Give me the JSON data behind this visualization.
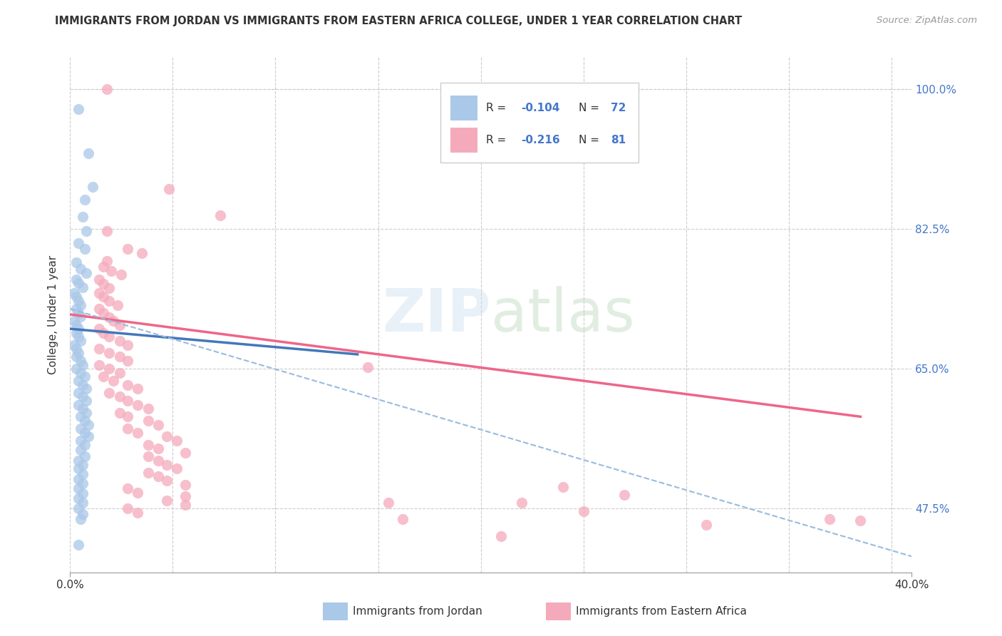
{
  "title": "IMMIGRANTS FROM JORDAN VS IMMIGRANTS FROM EASTERN AFRICA COLLEGE, UNDER 1 YEAR CORRELATION CHART",
  "source": "Source: ZipAtlas.com",
  "ylabel_label": "College, Under 1 year",
  "legend_blue_r": "-0.104",
  "legend_blue_n": "72",
  "legend_pink_r": "-0.216",
  "legend_pink_n": "81",
  "legend_label_blue": "Immigrants from Jordan",
  "legend_label_pink": "Immigrants from Eastern Africa",
  "blue_color": "#aac8e8",
  "pink_color": "#f5aabb",
  "blue_line_color": "#4477bb",
  "pink_line_color": "#ee6688",
  "dashed_line_color": "#99bbdd",
  "text_color_dark": "#333333",
  "text_color_blue": "#4477cc",
  "grid_color": "#cccccc",
  "blue_scatter": [
    [
      0.004,
      0.975
    ],
    [
      0.009,
      0.92
    ],
    [
      0.011,
      0.878
    ],
    [
      0.007,
      0.862
    ],
    [
      0.006,
      0.84
    ],
    [
      0.008,
      0.822
    ],
    [
      0.004,
      0.807
    ],
    [
      0.007,
      0.8
    ],
    [
      0.003,
      0.783
    ],
    [
      0.005,
      0.775
    ],
    [
      0.008,
      0.77
    ],
    [
      0.003,
      0.762
    ],
    [
      0.004,
      0.757
    ],
    [
      0.006,
      0.752
    ],
    [
      0.002,
      0.745
    ],
    [
      0.003,
      0.74
    ],
    [
      0.004,
      0.735
    ],
    [
      0.005,
      0.73
    ],
    [
      0.003,
      0.725
    ],
    [
      0.004,
      0.72
    ],
    [
      0.005,
      0.715
    ],
    [
      0.002,
      0.71
    ],
    [
      0.003,
      0.705
    ],
    [
      0.004,
      0.7
    ],
    [
      0.003,
      0.695
    ],
    [
      0.004,
      0.69
    ],
    [
      0.005,
      0.685
    ],
    [
      0.002,
      0.68
    ],
    [
      0.003,
      0.675
    ],
    [
      0.004,
      0.67
    ],
    [
      0.003,
      0.665
    ],
    [
      0.005,
      0.66
    ],
    [
      0.006,
      0.655
    ],
    [
      0.003,
      0.65
    ],
    [
      0.005,
      0.645
    ],
    [
      0.007,
      0.64
    ],
    [
      0.004,
      0.635
    ],
    [
      0.006,
      0.63
    ],
    [
      0.008,
      0.625
    ],
    [
      0.004,
      0.62
    ],
    [
      0.006,
      0.615
    ],
    [
      0.008,
      0.61
    ],
    [
      0.004,
      0.605
    ],
    [
      0.006,
      0.6
    ],
    [
      0.008,
      0.595
    ],
    [
      0.005,
      0.59
    ],
    [
      0.007,
      0.585
    ],
    [
      0.009,
      0.58
    ],
    [
      0.005,
      0.575
    ],
    [
      0.007,
      0.57
    ],
    [
      0.009,
      0.565
    ],
    [
      0.005,
      0.56
    ],
    [
      0.007,
      0.555
    ],
    [
      0.005,
      0.548
    ],
    [
      0.007,
      0.54
    ],
    [
      0.004,
      0.535
    ],
    [
      0.006,
      0.53
    ],
    [
      0.004,
      0.525
    ],
    [
      0.006,
      0.518
    ],
    [
      0.004,
      0.512
    ],
    [
      0.006,
      0.506
    ],
    [
      0.004,
      0.5
    ],
    [
      0.006,
      0.494
    ],
    [
      0.004,
      0.488
    ],
    [
      0.006,
      0.482
    ],
    [
      0.004,
      0.475
    ],
    [
      0.006,
      0.468
    ],
    [
      0.005,
      0.462
    ],
    [
      0.004,
      0.43
    ]
  ],
  "pink_scatter": [
    [
      0.018,
      1.0
    ],
    [
      0.048,
      0.875
    ],
    [
      0.073,
      0.842
    ],
    [
      0.018,
      0.822
    ],
    [
      0.028,
      0.8
    ],
    [
      0.035,
      0.795
    ],
    [
      0.018,
      0.785
    ],
    [
      0.016,
      0.778
    ],
    [
      0.02,
      0.772
    ],
    [
      0.025,
      0.768
    ],
    [
      0.014,
      0.762
    ],
    [
      0.016,
      0.756
    ],
    [
      0.019,
      0.751
    ],
    [
      0.014,
      0.745
    ],
    [
      0.016,
      0.74
    ],
    [
      0.019,
      0.735
    ],
    [
      0.023,
      0.73
    ],
    [
      0.014,
      0.725
    ],
    [
      0.016,
      0.72
    ],
    [
      0.019,
      0.714
    ],
    [
      0.021,
      0.71
    ],
    [
      0.024,
      0.705
    ],
    [
      0.014,
      0.7
    ],
    [
      0.016,
      0.695
    ],
    [
      0.019,
      0.69
    ],
    [
      0.024,
      0.685
    ],
    [
      0.028,
      0.68
    ],
    [
      0.014,
      0.675
    ],
    [
      0.019,
      0.67
    ],
    [
      0.024,
      0.665
    ],
    [
      0.028,
      0.66
    ],
    [
      0.014,
      0.655
    ],
    [
      0.019,
      0.65
    ],
    [
      0.024,
      0.645
    ],
    [
      0.016,
      0.64
    ],
    [
      0.021,
      0.635
    ],
    [
      0.028,
      0.63
    ],
    [
      0.033,
      0.625
    ],
    [
      0.019,
      0.62
    ],
    [
      0.024,
      0.615
    ],
    [
      0.028,
      0.61
    ],
    [
      0.033,
      0.605
    ],
    [
      0.038,
      0.6
    ],
    [
      0.024,
      0.595
    ],
    [
      0.028,
      0.59
    ],
    [
      0.038,
      0.585
    ],
    [
      0.043,
      0.58
    ],
    [
      0.028,
      0.575
    ],
    [
      0.033,
      0.57
    ],
    [
      0.047,
      0.565
    ],
    [
      0.052,
      0.56
    ],
    [
      0.038,
      0.555
    ],
    [
      0.043,
      0.55
    ],
    [
      0.056,
      0.545
    ],
    [
      0.038,
      0.54
    ],
    [
      0.043,
      0.535
    ],
    [
      0.047,
      0.53
    ],
    [
      0.052,
      0.525
    ],
    [
      0.038,
      0.52
    ],
    [
      0.043,
      0.515
    ],
    [
      0.047,
      0.51
    ],
    [
      0.056,
      0.505
    ],
    [
      0.028,
      0.5
    ],
    [
      0.033,
      0.495
    ],
    [
      0.056,
      0.49
    ],
    [
      0.047,
      0.485
    ],
    [
      0.056,
      0.48
    ],
    [
      0.028,
      0.475
    ],
    [
      0.033,
      0.47
    ],
    [
      0.21,
      0.44
    ],
    [
      0.25,
      0.472
    ],
    [
      0.22,
      0.482
    ],
    [
      0.24,
      0.502
    ],
    [
      0.27,
      0.492
    ],
    [
      0.145,
      0.652
    ],
    [
      0.155,
      0.482
    ],
    [
      0.162,
      0.462
    ],
    [
      0.31,
      0.455
    ],
    [
      0.37,
      0.462
    ],
    [
      0.385,
      0.46
    ]
  ],
  "xlim": [
    0.0,
    0.41
  ],
  "ylim": [
    0.395,
    1.04
  ],
  "xtick_positions": [
    0.0,
    0.41
  ],
  "xtick_labels": [
    "0.0%",
    "40.0%"
  ],
  "xtick_grid_positions": [
    0.0,
    0.05,
    0.1,
    0.15,
    0.2,
    0.25,
    0.3,
    0.35,
    0.4
  ],
  "ytick_positions": [
    1.0,
    0.825,
    0.65,
    0.475
  ],
  "ytick_labels": [
    "100.0%",
    "82.5%",
    "65.0%",
    "47.5%"
  ],
  "blue_trend_x": [
    0.0,
    0.14
  ],
  "blue_trend_y": [
    0.7,
    0.668
  ],
  "pink_trend_x": [
    0.0,
    0.385
  ],
  "pink_trend_y": [
    0.718,
    0.59
  ],
  "dashed_trend_x": [
    0.0,
    0.41
  ],
  "dashed_trend_y": [
    0.725,
    0.415
  ]
}
